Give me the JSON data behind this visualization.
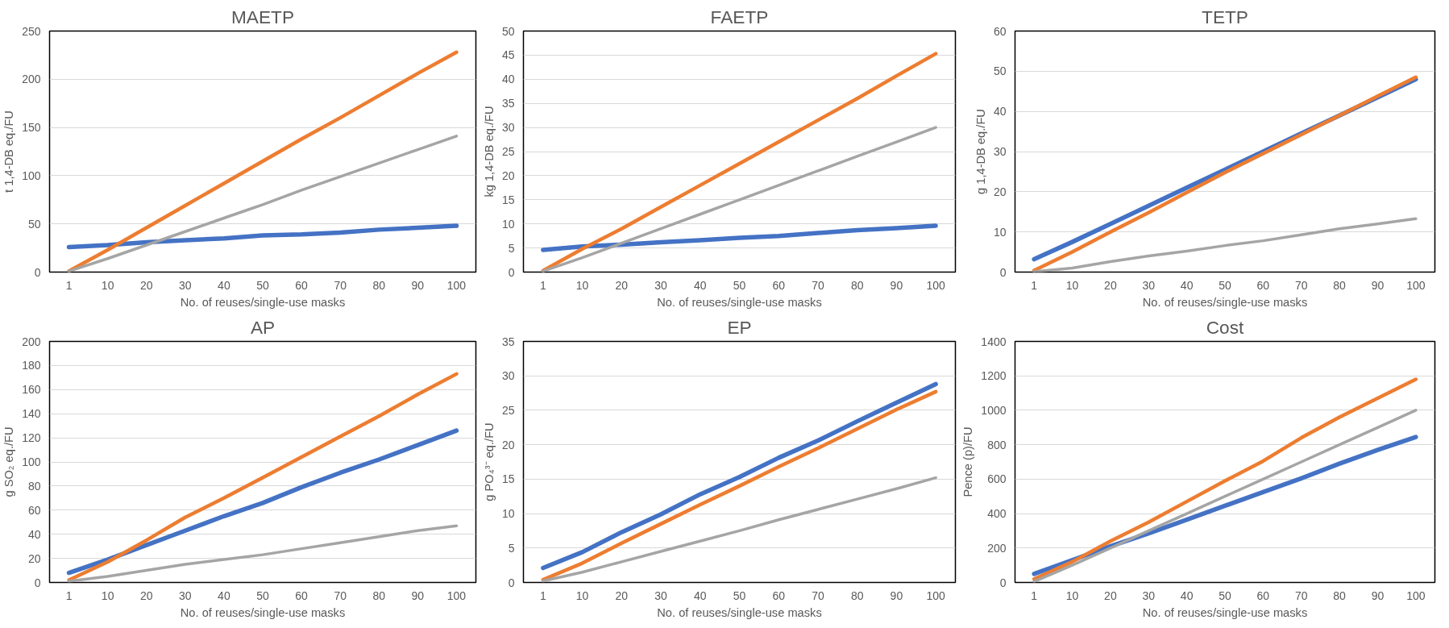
{
  "chart_data": [
    {
      "type": "line",
      "title": "MAETP",
      "xlabel": "No. of reuses/single-use masks",
      "ylabel": "t 1,4-DB eq./FU",
      "categories": [
        "1",
        "10",
        "20",
        "30",
        "40",
        "50",
        "60",
        "70",
        "80",
        "90",
        "100"
      ],
      "ylim": [
        0,
        250
      ],
      "yticks": [
        0,
        50,
        100,
        150,
        200,
        250
      ],
      "grid": "y",
      "series": [
        {
          "color": "#4472c4",
          "values": [
            26,
            28,
            31,
            33,
            35,
            38,
            39,
            41,
            44,
            46,
            48
          ]
        },
        {
          "color": "#ed7d31",
          "values": [
            1,
            23,
            46,
            69,
            92,
            115,
            138,
            160,
            183,
            206,
            228
          ]
        },
        {
          "color": "#a5a5a5",
          "values": [
            1,
            14,
            28,
            42,
            56,
            70,
            85,
            99,
            113,
            127,
            141
          ]
        }
      ]
    },
    {
      "type": "line",
      "title": "FAETP",
      "xlabel": "No. of reuses/single-use masks",
      "ylabel": "kg 1,4-DB eq./FU",
      "categories": [
        "1",
        "10",
        "20",
        "30",
        "40",
        "50",
        "60",
        "70",
        "80",
        "90",
        "100"
      ],
      "ylim": [
        0,
        50
      ],
      "yticks": [
        0,
        5,
        10,
        15,
        20,
        25,
        30,
        35,
        40,
        45,
        50
      ],
      "grid": "y",
      "series": [
        {
          "color": "#4472c4",
          "values": [
            4.6,
            5.3,
            5.7,
            6.2,
            6.6,
            7.1,
            7.5,
            8.1,
            8.7,
            9.1,
            9.6
          ]
        },
        {
          "color": "#ed7d31",
          "values": [
            0.3,
            4.8,
            9,
            13.5,
            18,
            22.5,
            27,
            31.5,
            36,
            40.7,
            45.3
          ]
        },
        {
          "color": "#a5a5a5",
          "values": [
            0.2,
            3,
            6,
            9,
            12,
            15,
            18,
            21,
            24,
            27,
            30
          ]
        }
      ]
    },
    {
      "type": "line",
      "title": "TETP",
      "xlabel": "No. of reuses/single-use masks",
      "ylabel": "g 1,4-DB eq./FU",
      "categories": [
        "1",
        "10",
        "20",
        "30",
        "40",
        "50",
        "60",
        "70",
        "80",
        "90",
        "100"
      ],
      "ylim": [
        0,
        60
      ],
      "yticks": [
        0,
        10,
        20,
        30,
        40,
        50,
        60
      ],
      "grid": "y",
      "series": [
        {
          "color": "#4472c4",
          "values": [
            3.2,
            7.5,
            12,
            16.5,
            21,
            25.5,
            30,
            34.5,
            39,
            43.5,
            48
          ]
        },
        {
          "color": "#ed7d31",
          "values": [
            0.4,
            5,
            10,
            14.8,
            19.8,
            24.8,
            29.5,
            34.2,
            39,
            43.8,
            48.5
          ]
        },
        {
          "color": "#a5a5a5",
          "values": [
            0.1,
            1,
            2.6,
            4,
            5.2,
            6.6,
            7.8,
            9.3,
            10.8,
            12,
            13.3
          ]
        }
      ]
    },
    {
      "type": "line",
      "title": "AP",
      "xlabel": "No. of reuses/single-use masks",
      "ylabel": "g SO₂ eq./FU",
      "categories": [
        "1",
        "10",
        "20",
        "30",
        "40",
        "50",
        "60",
        "70",
        "80",
        "90",
        "100"
      ],
      "ylim": [
        0,
        200
      ],
      "yticks": [
        0,
        20,
        40,
        60,
        80,
        100,
        120,
        140,
        160,
        180,
        200
      ],
      "grid": "y",
      "series": [
        {
          "color": "#4472c4",
          "values": [
            8,
            19,
            31,
            43,
            55,
            66,
            79,
            91,
            102,
            114,
            126
          ]
        },
        {
          "color": "#ed7d31",
          "values": [
            2,
            17,
            35,
            54,
            70,
            87,
            104,
            121,
            138,
            156,
            173
          ]
        },
        {
          "color": "#a5a5a5",
          "values": [
            1,
            5,
            10,
            15,
            19,
            23,
            28,
            33,
            38,
            43,
            47
          ]
        }
      ]
    },
    {
      "type": "line",
      "title": "EP",
      "xlabel": "No. of reuses/single-use masks",
      "ylabel": "g PO₄³⁻ eq./FU",
      "categories": [
        "1",
        "10",
        "20",
        "30",
        "40",
        "50",
        "60",
        "70",
        "80",
        "90",
        "100"
      ],
      "ylim": [
        0,
        35
      ],
      "yticks": [
        0,
        5,
        10,
        15,
        20,
        25,
        30,
        35
      ],
      "grid": "y",
      "series": [
        {
          "color": "#4472c4",
          "values": [
            2.1,
            4.4,
            7.3,
            9.9,
            12.8,
            15.3,
            18.1,
            20.6,
            23.4,
            26.1,
            28.8
          ]
        },
        {
          "color": "#ed7d31",
          "values": [
            0.4,
            2.8,
            5.7,
            8.5,
            11.3,
            14,
            16.8,
            19.5,
            22.3,
            25.1,
            27.7
          ]
        },
        {
          "color": "#a5a5a5",
          "values": [
            0.2,
            1.5,
            3,
            4.5,
            6,
            7.5,
            9.1,
            10.6,
            12.1,
            13.6,
            15.2
          ]
        }
      ]
    },
    {
      "type": "line",
      "title": "Cost",
      "xlabel": "No. of reuses/single-use masks",
      "ylabel": "Pence (p)/FU",
      "categories": [
        "1",
        "10",
        "20",
        "30",
        "40",
        "50",
        "60",
        "70",
        "80",
        "90",
        "100"
      ],
      "ylim": [
        0,
        1400
      ],
      "yticks": [
        0,
        200,
        400,
        600,
        800,
        1000,
        1200,
        1400
      ],
      "grid": "y",
      "series": [
        {
          "color": "#4472c4",
          "values": [
            50,
            130,
            210,
            285,
            365,
            445,
            525,
            605,
            690,
            770,
            845
          ]
        },
        {
          "color": "#ed7d31",
          "values": [
            20,
            120,
            240,
            350,
            470,
            590,
            705,
            840,
            960,
            1070,
            1180
          ]
        },
        {
          "color": "#a5a5a5",
          "values": [
            5,
            100,
            200,
            300,
            400,
            500,
            600,
            700,
            800,
            900,
            1000
          ]
        }
      ]
    }
  ]
}
